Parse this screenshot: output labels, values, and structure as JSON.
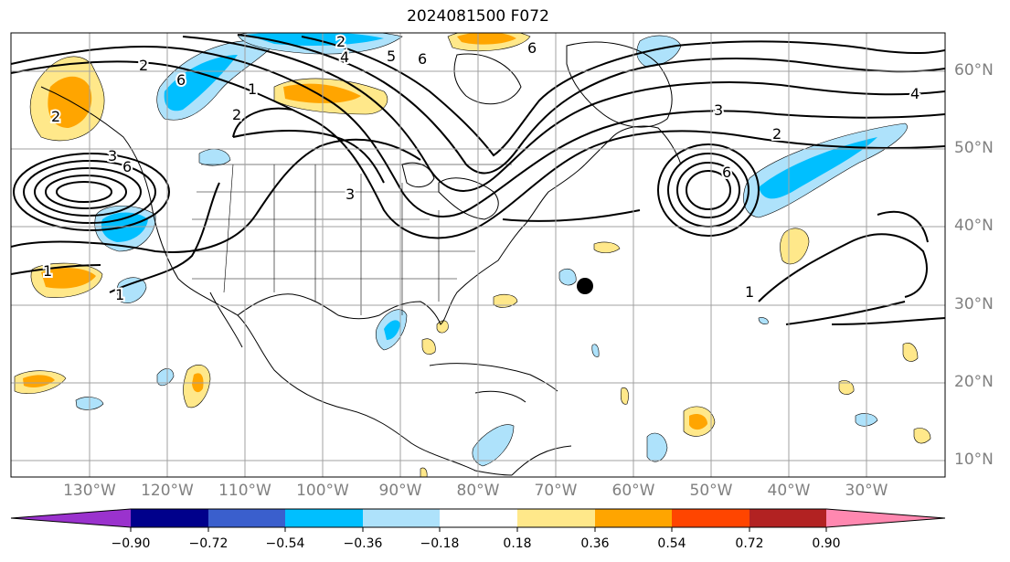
{
  "title": "2024081500 F072",
  "map": {
    "lon_labels": [
      "130°W",
      "120°W",
      "110°W",
      "100°W",
      "90°W",
      "80°W",
      "70°W",
      "60°W",
      "50°W",
      "40°W",
      "30°W"
    ],
    "lat_labels": [
      "60°N",
      "50°N",
      "40°N",
      "30°N",
      "20°N",
      "10°N"
    ],
    "contour_labels": [
      "1",
      "1",
      "1",
      "1",
      "2",
      "2",
      "2",
      "2",
      "2",
      "3",
      "3",
      "3",
      "4",
      "4",
      "5",
      "6",
      "6",
      "6",
      "6",
      "6"
    ]
  },
  "colorbar": {
    "tick_labels": [
      "−0.90",
      "−0.72",
      "−0.54",
      "−0.36",
      "−0.18",
      "0.18",
      "0.36",
      "0.54",
      "0.72",
      "0.90"
    ],
    "colors": {
      "below": "#9a32cd",
      "bins": [
        "#00008b",
        "#3a5fcd",
        "#00bfff",
        "#aee2fb",
        "#ffffff",
        "#ffe88a",
        "#ffa500",
        "#ff4500",
        "#b22222",
        "#ff88b0"
      ]
    }
  },
  "colors": {
    "positive": "#ffa500",
    "positive_light": "#ffe88a",
    "negative": "#00bfff",
    "negative_light": "#aee2fb",
    "contour": "#000000"
  }
}
